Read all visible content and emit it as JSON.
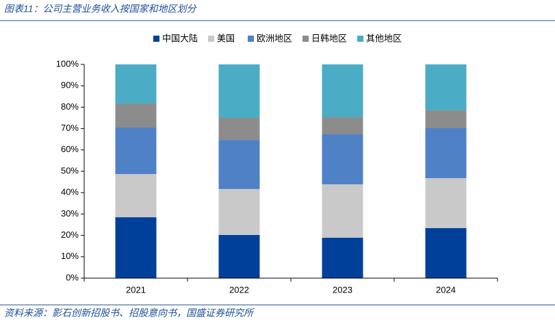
{
  "chart_data": {
    "type": "stacked_bar",
    "title": "图表11：公司主营业务收入按国家和地区划分",
    "source": "资料来源：影石创新招股书、招股意向书，国盛证券研究所",
    "categories": [
      "2021",
      "2022",
      "2023",
      "2024"
    ],
    "series": [
      {
        "name": "中国大陆",
        "color": "#00409a",
        "values": [
          28.5,
          20.2,
          18.9,
          23.4
        ]
      },
      {
        "name": "美国",
        "color": "#c9c9c9",
        "values": [
          20.2,
          21.5,
          25.0,
          23.4
        ]
      },
      {
        "name": "欧洲地区",
        "color": "#4f81c7",
        "values": [
          21.8,
          23.0,
          23.4,
          23.4
        ]
      },
      {
        "name": "日韩地区",
        "color": "#8c8c8c",
        "values": [
          11.2,
          10.3,
          8.0,
          8.3
        ]
      },
      {
        "name": "其他地区",
        "color": "#4bacc6",
        "values": [
          18.3,
          25.0,
          24.7,
          21.5
        ]
      }
    ],
    "ylim": [
      0,
      100
    ],
    "yticks": [
      {
        "value": 0,
        "label": "0%"
      },
      {
        "value": 10,
        "label": "10%"
      },
      {
        "value": 20,
        "label": "20%"
      },
      {
        "value": 30,
        "label": "30%"
      },
      {
        "value": 40,
        "label": "40%"
      },
      {
        "value": 50,
        "label": "50%"
      },
      {
        "value": 60,
        "label": "60%"
      },
      {
        "value": 70,
        "label": "70%"
      },
      {
        "value": 80,
        "label": "80%"
      },
      {
        "value": 90,
        "label": "90%"
      },
      {
        "value": 100,
        "label": "100%"
      }
    ],
    "legend": "top"
  }
}
